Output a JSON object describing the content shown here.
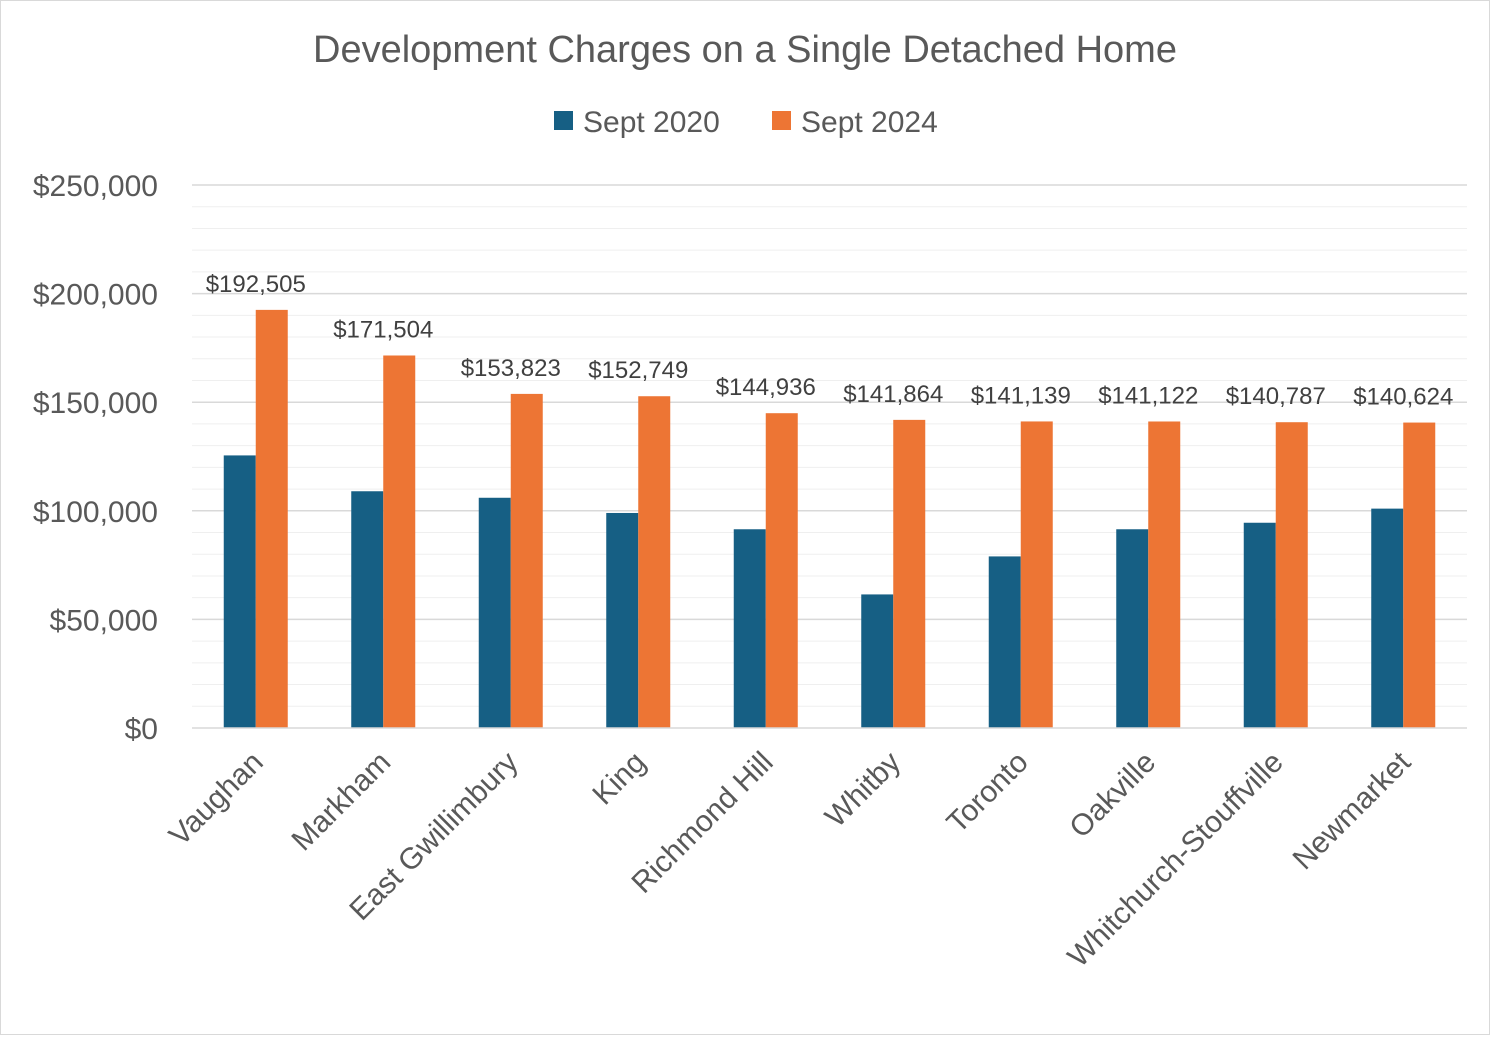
{
  "chart_data": {
    "type": "bar",
    "title": "Development Charges on a Single Detached Home",
    "xlabel": "",
    "ylabel": "",
    "ylim": [
      0,
      250000
    ],
    "yticks": [
      "$0",
      "$50,000",
      "$100,000",
      "$150,000",
      "$200,000",
      "$250,000"
    ],
    "ytick_values": [
      0,
      50000,
      100000,
      150000,
      200000,
      250000
    ],
    "grid": true,
    "legend_position": "top",
    "categories": [
      "Vaughan",
      "Markham",
      "East Gwillimbury",
      "King",
      "Richmond Hill",
      "Whitby",
      "Toronto",
      "Oakville",
      "Whitchurch-Stouffville",
      "Newmarket"
    ],
    "series": [
      {
        "name": "Sept 2020",
        "color": "#165f84",
        "values": [
          125500,
          109000,
          106000,
          99000,
          91500,
          61500,
          79000,
          91500,
          94500,
          101000
        ]
      },
      {
        "name": "Sept 2024",
        "color": "#ed7534",
        "values": [
          192505,
          171504,
          153823,
          152749,
          144936,
          141864,
          141139,
          141122,
          140787,
          140624
        ],
        "data_labels": [
          "$192,505",
          "$171,504",
          "$153,823",
          "$152,749",
          "$144,936",
          "$141,864",
          "$141,139",
          "$141,122",
          "$140,787",
          "$140,624"
        ]
      }
    ]
  }
}
